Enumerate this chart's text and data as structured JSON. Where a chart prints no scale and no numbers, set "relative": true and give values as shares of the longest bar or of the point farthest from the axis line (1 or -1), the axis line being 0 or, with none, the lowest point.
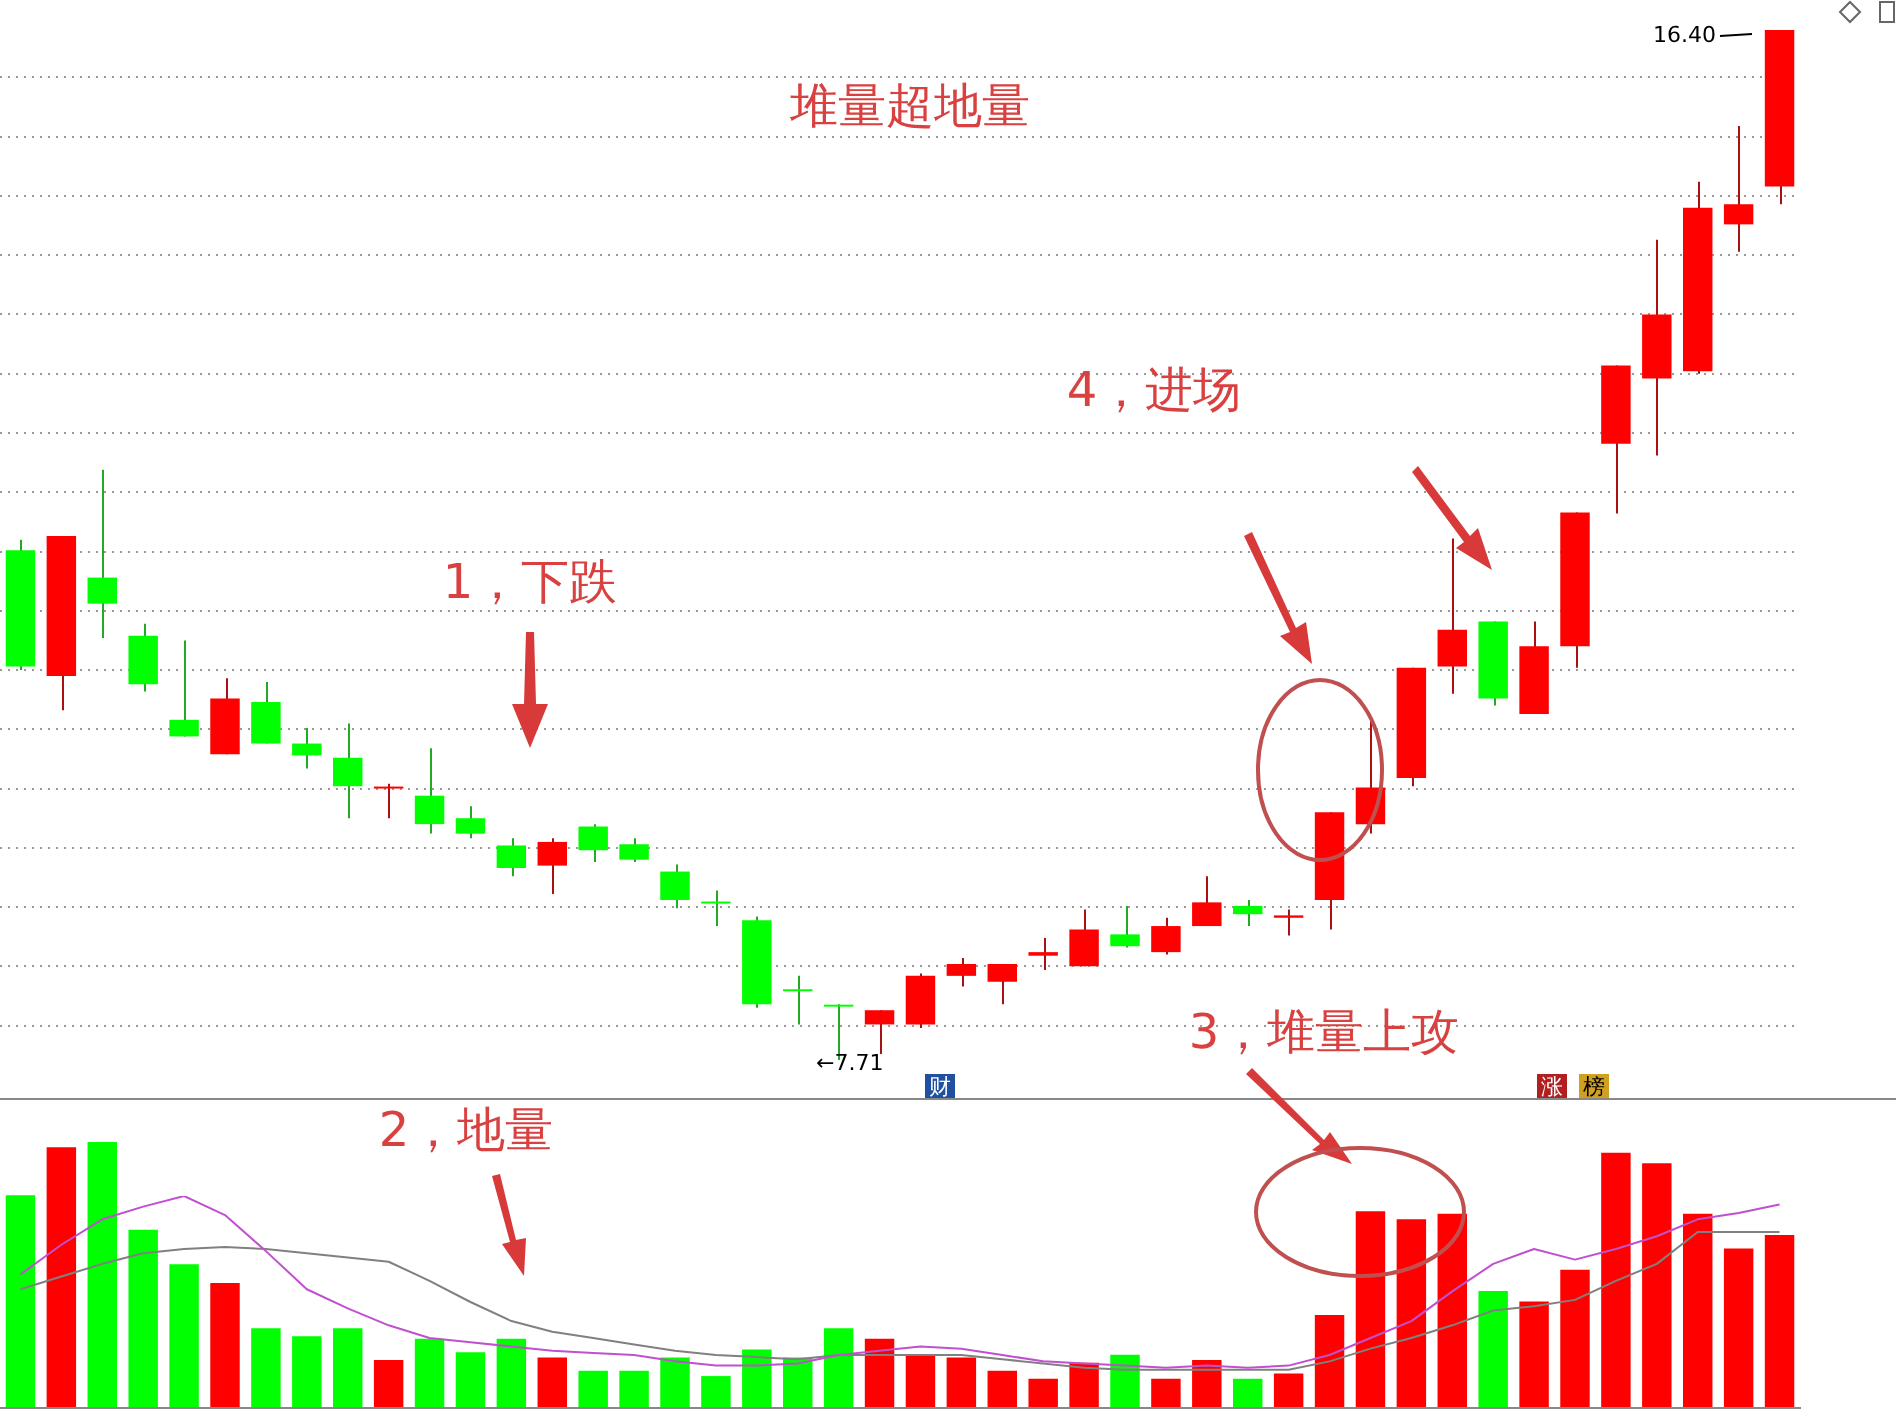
{
  "chart_data": [
    {
      "type": "candlestick",
      "title": "堆量超地量",
      "categories": [
        null,
        null,
        null,
        null,
        null,
        null,
        null,
        null,
        null,
        null,
        null,
        null,
        null,
        null,
        null,
        null,
        null,
        null,
        null,
        null,
        null,
        null,
        null,
        null,
        null,
        null,
        null,
        null,
        null,
        null,
        null,
        null,
        null,
        null,
        null,
        null,
        null,
        null,
        null,
        null,
        null,
        null,
        null,
        null
      ],
      "ohlc": [
        [
          12.01,
          12.1,
          11.0,
          11.03
        ],
        [
          10.95,
          12.13,
          10.66,
          12.13
        ],
        [
          11.78,
          12.69,
          11.27,
          11.56
        ],
        [
          11.29,
          11.39,
          10.82,
          10.88
        ],
        [
          10.58,
          11.25,
          10.44,
          10.44
        ],
        [
          10.29,
          10.93,
          10.29,
          10.76
        ],
        [
          10.73,
          10.9,
          10.38,
          10.38
        ],
        [
          10.38,
          10.51,
          10.17,
          10.28
        ],
        [
          10.26,
          10.55,
          9.75,
          10.02
        ],
        [
          10.0,
          10.04,
          9.75,
          10.01
        ],
        [
          9.94,
          10.34,
          9.62,
          9.7
        ],
        [
          9.75,
          9.85,
          9.58,
          9.62
        ],
        [
          9.52,
          9.58,
          9.26,
          9.33
        ],
        [
          9.35,
          9.58,
          9.11,
          9.55
        ],
        [
          9.68,
          9.7,
          9.38,
          9.48
        ],
        [
          9.53,
          9.58,
          9.38,
          9.4
        ],
        [
          9.3,
          9.36,
          8.99,
          9.06
        ],
        [
          9.04,
          9.14,
          8.84,
          9.03
        ],
        [
          8.89,
          8.92,
          8.15,
          8.18
        ],
        [
          8.3,
          8.42,
          8.01,
          8.29
        ],
        [
          8.17,
          8.18,
          7.71,
          8.16
        ],
        [
          8.01,
          8.13,
          7.76,
          8.13
        ],
        [
          8.01,
          8.44,
          7.98,
          8.42
        ],
        [
          8.42,
          8.57,
          8.33,
          8.52
        ],
        [
          8.37,
          8.52,
          8.18,
          8.52
        ],
        [
          8.59,
          8.74,
          8.47,
          8.62
        ],
        [
          8.5,
          8.98,
          8.5,
          8.81
        ],
        [
          8.77,
          9.01,
          8.66,
          8.67
        ],
        [
          8.62,
          8.91,
          8.6,
          8.84
        ],
        [
          8.84,
          9.26,
          8.84,
          9.04
        ],
        [
          9.01,
          9.06,
          8.84,
          8.94
        ],
        [
          8.91,
          8.98,
          8.76,
          8.93
        ],
        [
          9.06,
          9.8,
          8.81,
          9.8
        ],
        [
          9.7,
          10.61,
          9.62,
          10.01
        ],
        [
          10.09,
          11.02,
          10.02,
          11.02
        ],
        [
          11.03,
          12.11,
          10.8,
          11.34
        ],
        [
          11.41,
          11.41,
          10.7,
          10.76
        ],
        [
          10.63,
          11.41,
          10.63,
          11.2
        ],
        [
          11.2,
          12.33,
          11.02,
          12.33
        ],
        [
          12.91,
          13.57,
          12.32,
          13.57
        ],
        [
          13.46,
          14.63,
          12.81,
          14.0
        ],
        [
          13.52,
          15.12,
          13.5,
          14.9
        ],
        [
          14.76,
          15.59,
          14.53,
          14.93
        ],
        [
          15.08,
          16.4,
          14.93,
          16.4
        ]
      ],
      "colors": [
        "#00ff00",
        "#ff0000",
        "#00ff00",
        "#00ff00",
        "#00ff00",
        "#ff0000",
        "#00ff00",
        "#00ff00",
        "#00ff00",
        "#ff0000",
        "#00ff00",
        "#00ff00",
        "#00ff00",
        "#ff0000",
        "#00ff00",
        "#00ff00",
        "#00ff00",
        "#00ff00",
        "#00ff00",
        "#00ff00",
        "#00ff00",
        "#ff0000",
        "#ff0000",
        "#ff0000",
        "#ff0000",
        "#ff0000",
        "#ff0000",
        "#00ff00",
        "#ff0000",
        "#ff0000",
        "#00ff00",
        "#ff0000",
        "#ff0000",
        "#ff0000",
        "#ff0000",
        "#ff0000",
        "#00ff00",
        "#ff0000",
        "#ff0000",
        "#ff0000",
        "#ff0000",
        "#ff0000",
        "#ff0000",
        "#ff0000"
      ],
      "yticks": [
        {
          "value": 8,
          "label": null
        },
        {
          "value": 8.5,
          "label": null
        },
        {
          "value": 9,
          "label": null
        },
        {
          "value": 9.5,
          "label": null
        },
        {
          "value": 10,
          "label": null
        },
        {
          "value": 10.5,
          "label": null
        },
        {
          "value": 11,
          "label": null
        },
        {
          "value": 11.5,
          "label": null
        },
        {
          "value": 12,
          "label": null
        },
        {
          "value": 12.5,
          "label": null
        },
        {
          "value": 13,
          "label": null
        },
        {
          "value": 13.5,
          "label": null
        },
        {
          "value": 14,
          "label": null
        },
        {
          "value": 14.5,
          "label": null
        },
        {
          "value": 15,
          "label": null
        },
        {
          "value": 15.5,
          "label": null
        },
        {
          "value": 16,
          "label": null
        }
      ],
      "grid": "y",
      "annotations": [
        "4，进场",
        "1，下跌",
        "16.40",
        "←7.71",
        "3，堆量上攻",
        "财",
        "涨",
        "榜"
      ]
    },
    {
      "type": "bar",
      "relative": true,
      "categories": [
        null,
        null,
        null,
        null,
        null,
        null,
        null,
        null,
        null,
        null,
        null,
        null,
        null,
        null,
        null,
        null,
        null,
        null,
        null,
        null,
        null,
        null,
        null,
        null,
        null,
        null,
        null,
        null,
        null,
        null,
        null,
        null,
        null,
        null,
        null,
        null,
        null,
        null,
        null,
        null,
        null,
        null,
        null,
        null
      ],
      "series": [
        {
          "type": "bar",
          "colors": [
            "#00ff00",
            "#ff0000",
            "#00ff00",
            "#00ff00",
            "#00ff00",
            "#ff0000",
            "#00ff00",
            "#00ff00",
            "#00ff00",
            "#ff0000",
            "#00ff00",
            "#00ff00",
            "#00ff00",
            "#ff0000",
            "#00ff00",
            "#00ff00",
            "#00ff00",
            "#00ff00",
            "#00ff00",
            "#00ff00",
            "#00ff00",
            "#ff0000",
            "#ff0000",
            "#ff0000",
            "#ff0000",
            "#ff0000",
            "#ff0000",
            "#00ff00",
            "#ff0000",
            "#ff0000",
            "#00ff00",
            "#ff0000",
            "#ff0000",
            "#ff0000",
            "#ff0000",
            "#ff0000",
            "#00ff00",
            "#ff0000",
            "#ff0000",
            "#ff0000",
            "#ff0000",
            "#ff0000",
            "#ff0000",
            "#ff0000"
          ],
          "values": [
            0.8,
            0.98,
            1.0,
            0.67,
            0.54,
            0.47,
            0.3,
            0.27,
            0.3,
            0.18,
            0.26,
            0.21,
            0.26,
            0.19,
            0.14,
            0.14,
            0.19,
            0.12,
            0.22,
            0.19,
            0.3,
            0.26,
            0.2,
            0.19,
            0.14,
            0.11,
            0.17,
            0.2,
            0.11,
            0.18,
            0.11,
            0.13,
            0.35,
            0.74,
            0.71,
            0.73,
            0.44,
            0.4,
            0.52,
            0.96,
            0.92,
            0.73,
            0.6,
            0.65
          ]
        }
      ],
      "annotations": [
        "2，地量"
      ]
    },
    {
      "type": "line",
      "relative": true,
      "categories": [
        null,
        null,
        null,
        null,
        null,
        null,
        null,
        null,
        null,
        null,
        null,
        null,
        null,
        null,
        null,
        null,
        null,
        null,
        null,
        null,
        null,
        null,
        null,
        null,
        null,
        null,
        null,
        null,
        null,
        null,
        null,
        null,
        null,
        null,
        null,
        null,
        null,
        null,
        null,
        null,
        null,
        null,
        null,
        null
      ],
      "series": [
        {
          "color": "#c050d0",
          "values": [
            0.63,
            0.77,
            0.89,
            0.95,
            1.0,
            0.91,
            0.74,
            0.56,
            0.47,
            0.39,
            0.33,
            0.31,
            0.29,
            0.27,
            0.26,
            0.25,
            0.22,
            0.2,
            0.2,
            0.21,
            0.25,
            0.27,
            0.29,
            0.28,
            0.25,
            0.22,
            0.21,
            0.2,
            0.19,
            0.2,
            0.19,
            0.2,
            0.25,
            0.33,
            0.41,
            0.55,
            0.68,
            0.75,
            0.7,
            0.75,
            0.81,
            0.89,
            0.92,
            0.96
          ]
        },
        {
          "color": "#808080",
          "values": [
            0.56,
            0.62,
            0.68,
            0.73,
            0.75,
            0.76,
            0.75,
            0.73,
            0.71,
            0.69,
            0.6,
            0.5,
            0.41,
            0.36,
            0.33,
            0.3,
            0.27,
            0.25,
            0.24,
            0.23,
            0.25,
            0.25,
            0.25,
            0.25,
            0.23,
            0.21,
            0.19,
            0.18,
            0.18,
            0.18,
            0.18,
            0.18,
            0.22,
            0.28,
            0.33,
            0.39,
            0.46,
            0.48,
            0.51,
            0.6,
            0.68,
            0.83,
            0.83,
            0.83
          ]
        }
      ]
    }
  ]
}
